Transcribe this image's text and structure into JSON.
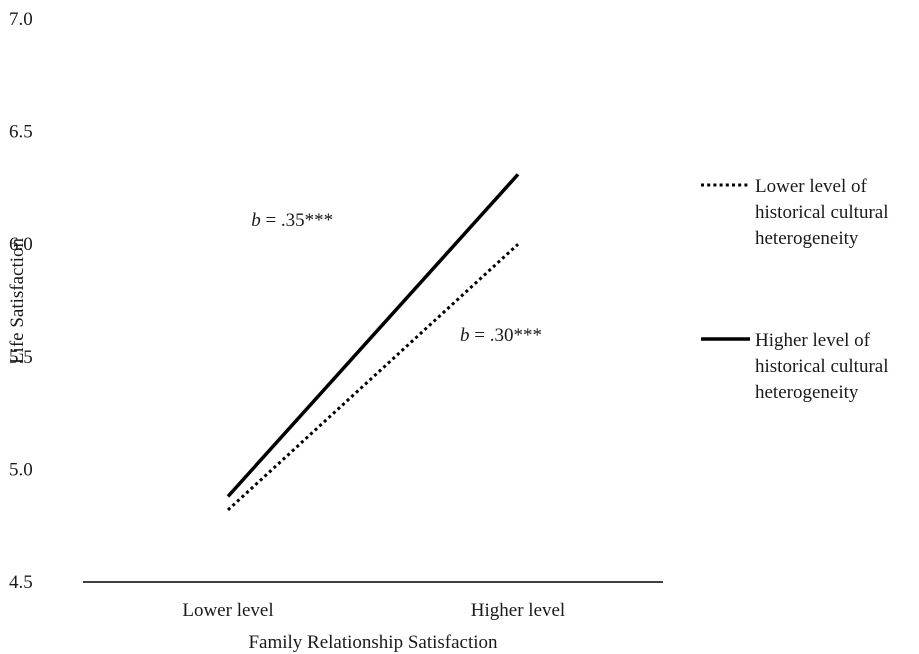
{
  "chart_data": {
    "type": "line",
    "title": "",
    "xlabel": "Family Relationship Satisfaction",
    "ylabel": "Life Satisfaction",
    "categories": [
      "Lower level",
      "Higher level"
    ],
    "ylim": [
      4.5,
      7.0
    ],
    "yticks": [
      "4.5",
      "5.0",
      "5.5",
      "6.0",
      "6.5",
      "7.0"
    ],
    "grid": false,
    "legend_position": "right",
    "series": [
      {
        "name": "Lower level of historical cultural heterogeneity",
        "name_lines": [
          "Lower level of",
          "historical cultural",
          "heterogeneity"
        ],
        "values": [
          4.82,
          6.0
        ],
        "style": "dotted",
        "color": "#000000"
      },
      {
        "name": "Higher level of historical cultural heterogeneity",
        "name_lines": [
          "Higher level of",
          "historical cultural",
          "heterogeneity"
        ],
        "values": [
          4.88,
          6.31
        ],
        "style": "solid",
        "color": "#000000"
      }
    ],
    "annotations": [
      {
        "italic": "b",
        "text": " = .35***",
        "x": 0.29,
        "y": 6.08
      },
      {
        "italic": "b",
        "text": " = .30***",
        "x": 0.65,
        "y": 5.57
      }
    ]
  }
}
